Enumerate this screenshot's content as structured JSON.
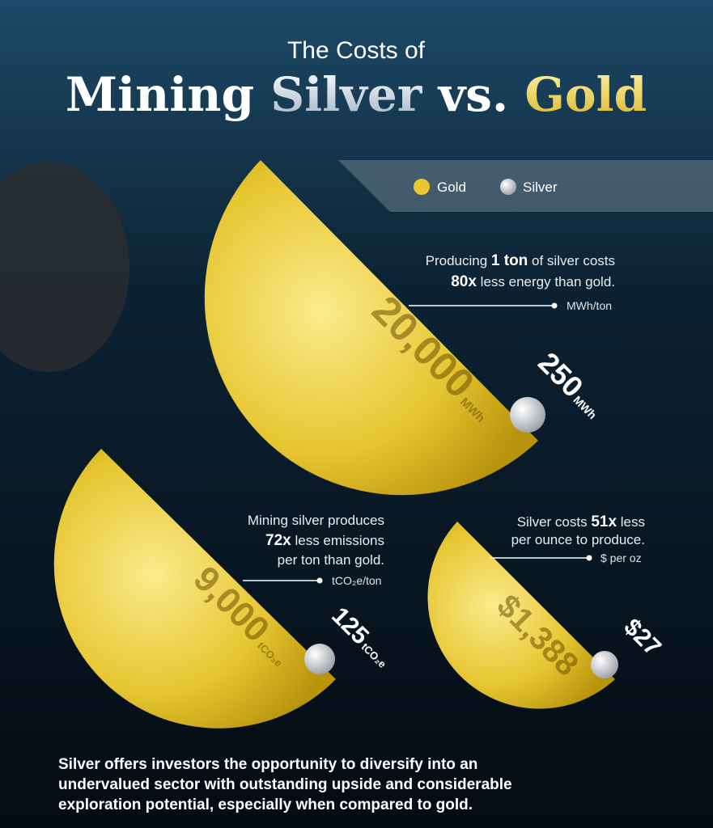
{
  "header": {
    "subtitle": "The Costs of",
    "title": [
      "Mining",
      "Silver",
      "vs.",
      "Gold"
    ]
  },
  "legend": [
    "Gold",
    "Silver"
  ],
  "panels": [
    {
      "caption": [
        [
          "Producing ",
          "1 ton",
          " of silver costs"
        ],
        [
          "80x",
          " less energy than gold."
        ]
      ],
      "unit": "MWh/ton",
      "gold_value": "20,000",
      "gold_unit": "MWh",
      "silver_value": "250",
      "silver_unit": "MWh"
    },
    {
      "caption": [
        [
          "Mining silver produces"
        ],
        [
          "72x",
          " less emissions"
        ],
        [
          "per ton than gold."
        ]
      ],
      "unit": "tCO₂e/ton",
      "gold_value": "9,000",
      "gold_unit": "tCO₂e",
      "silver_value": "125",
      "silver_unit": "tCO₂e"
    },
    {
      "caption": [
        [
          "Silver costs ",
          "51x",
          " less"
        ],
        [
          "per ounce to produce."
        ]
      ],
      "unit": "$ per oz",
      "gold_value": "$1,388",
      "gold_unit": "",
      "silver_value": "$27",
      "silver_unit": ""
    }
  ],
  "footer": [
    "Silver offers investors the opportunity to diversify into an",
    "undervalued sector with outstanding upside and considerable",
    "exploration potential, especially when compared to gold."
  ]
}
